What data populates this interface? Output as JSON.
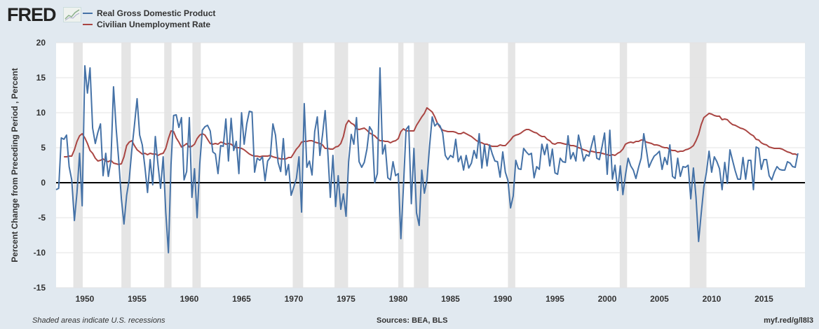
{
  "header": {
    "logo": "FRED",
    "logo_icon": "trend-chart-icon"
  },
  "footer": {
    "note": "Shaded areas indicate U.S. recessions",
    "sources": "Sources: BEA, BLS",
    "link": "myf.red/g/l8l3"
  },
  "chart_data": {
    "type": "line",
    "title": "",
    "xlabel": "",
    "ylabel": "Percent Change from Preceding Period , Percent",
    "xlim": [
      1947.25,
      2018.93
    ],
    "ylim": [
      -15,
      20
    ],
    "yticks": [
      20,
      15,
      10,
      5,
      0,
      -5,
      -10,
      -15
    ],
    "xticks": [
      1950,
      1955,
      1960,
      1965,
      1970,
      1975,
      1980,
      1985,
      1990,
      1995,
      2000,
      2005,
      2010,
      2015
    ],
    "grid": true,
    "legend_position": "top-left",
    "recessions": [
      [
        1948.9,
        1949.8
      ],
      [
        1953.5,
        1954.4
      ],
      [
        1957.6,
        1958.3
      ],
      [
        1960.3,
        1961.1
      ],
      [
        1969.9,
        1970.9
      ],
      [
        1973.9,
        1975.2
      ],
      [
        1980.0,
        1980.5
      ],
      [
        1981.5,
        1982.9
      ],
      [
        1990.5,
        1991.2
      ],
      [
        2001.2,
        2001.9
      ],
      [
        2007.9,
        2009.5
      ]
    ],
    "series": [
      {
        "name": "Real Gross Domestic Product",
        "color": "#4572a7",
        "frequency": "quarterly",
        "start": 1947.25,
        "values": [
          -1.0,
          -0.8,
          6.4,
          6.2,
          6.8,
          2.3,
          0.4,
          -5.4,
          -1.4,
          4.2,
          -3.3,
          16.7,
          12.8,
          16.4,
          7.8,
          5.6,
          7.2,
          8.4,
          1.0,
          4.2,
          0.9,
          3.1,
          13.7,
          7.7,
          3.1,
          -2.3,
          -5.9,
          -1.8,
          0.5,
          4.7,
          8.2,
          12.0,
          6.8,
          5.4,
          2.3,
          -1.4,
          3.3,
          -0.3,
          6.6,
          2.6,
          -0.8,
          3.7,
          -4.2,
          -10.0,
          2.6,
          9.6,
          9.7,
          7.9,
          9.3,
          0.4,
          1.6,
          9.3,
          -2.1,
          2.0,
          -5.0,
          2.7,
          7.5,
          8.0,
          8.2,
          7.4,
          4.4,
          4.1,
          1.3,
          5.3,
          5.2,
          9.1,
          3.1,
          9.2,
          4.6,
          5.9,
          1.3,
          10.0,
          5.5,
          8.4,
          10.2,
          10.1,
          1.5,
          3.5,
          3.2,
          3.7,
          0.3,
          3.1,
          3.6,
          8.4,
          6.8,
          2.9,
          1.6,
          6.3,
          1.1,
          2.6,
          -1.8,
          -0.6,
          0.6,
          3.7,
          -4.2,
          11.3,
          2.2,
          3.1,
          1.1,
          7.3,
          9.4,
          3.9,
          6.8,
          10.3,
          4.5,
          -2.1,
          3.9,
          -3.4,
          1.0,
          -3.8,
          -1.6,
          -4.8,
          3.0,
          6.9,
          5.5,
          9.3,
          3.0,
          2.2,
          2.9,
          4.8,
          8.0,
          7.4,
          0.0,
          1.3,
          16.4,
          4.1,
          5.4,
          0.7,
          0.4,
          3.0,
          1.0,
          1.3,
          -8.0,
          -0.5,
          7.6,
          8.1,
          -3.0,
          4.9,
          -4.3,
          -6.1,
          1.8,
          -1.5,
          0.4,
          5.3,
          9.4,
          8.1,
          8.5,
          8.1,
          7.1,
          3.9,
          3.3,
          3.9,
          3.6,
          6.2,
          3.0,
          3.8,
          1.8,
          3.9,
          2.1,
          2.8,
          4.6,
          3.5,
          7.0,
          2.1,
          5.4,
          2.4,
          5.4,
          4.1,
          3.1,
          3.0,
          0.8,
          4.4,
          1.5,
          0.3,
          -3.6,
          -1.9,
          3.2,
          2.0,
          1.9,
          4.9,
          4.4,
          4.0,
          4.2,
          0.7,
          2.3,
          1.9,
          5.5,
          4.0,
          5.5,
          2.4,
          4.8,
          1.4,
          1.2,
          3.5,
          3.0,
          2.9,
          6.7,
          3.4,
          4.3,
          3.1,
          6.8,
          5.1,
          3.1,
          4.0,
          3.8,
          5.3,
          6.7,
          3.5,
          3.3,
          5.1,
          7.1,
          1.2,
          7.5,
          0.5,
          2.5,
          -1.1,
          2.4,
          -1.7,
          1.1,
          3.5,
          2.4,
          1.8,
          0.6,
          2.2,
          3.5,
          7.0,
          4.7,
          2.2,
          3.1,
          3.8,
          4.1,
          4.5,
          1.9,
          3.6,
          2.6,
          5.4,
          0.9,
          0.6,
          3.5,
          0.9,
          2.3,
          2.2,
          2.5,
          -2.3,
          2.1,
          -2.1,
          -8.4,
          -4.4,
          -0.6,
          1.5,
          4.5,
          1.5,
          3.7,
          3.0,
          2.0,
          -1.0,
          2.9,
          -0.1,
          4.7,
          3.2,
          1.7,
          0.5,
          0.5,
          3.6,
          0.5,
          3.2,
          3.2,
          -1.0,
          5.1,
          4.9,
          1.9,
          3.3,
          3.3,
          1.0,
          0.4,
          1.5,
          2.3,
          1.9,
          1.8,
          1.8,
          3.0,
          2.8,
          2.3,
          2.2,
          4.2
        ]
      },
      {
        "name": "Civilian Unemployment Rate",
        "color": "#aa4643",
        "frequency": "quarterly",
        "start": 1948.0,
        "values": [
          3.7,
          3.7,
          3.8,
          3.8,
          4.7,
          5.9,
          6.7,
          7.0,
          6.4,
          5.6,
          4.6,
          4.2,
          3.5,
          3.1,
          3.2,
          3.4,
          3.1,
          3.0,
          3.2,
          2.8,
          2.7,
          2.6,
          2.7,
          3.7,
          5.3,
          5.8,
          6.0,
          5.3,
          4.7,
          4.4,
          4.1,
          4.2,
          4.0,
          4.2,
          4.1,
          4.1,
          3.9,
          4.1,
          4.2,
          4.9,
          6.3,
          7.4,
          7.3,
          6.4,
          5.8,
          5.1,
          5.3,
          5.6,
          5.1,
          5.2,
          5.5,
          6.3,
          6.8,
          7.0,
          6.8,
          6.2,
          5.6,
          5.5,
          5.6,
          5.5,
          5.8,
          5.7,
          5.5,
          5.6,
          5.5,
          5.2,
          5.0,
          5.0,
          4.9,
          4.7,
          4.4,
          4.1,
          3.9,
          3.8,
          3.8,
          3.7,
          3.8,
          3.8,
          3.8,
          3.9,
          3.7,
          3.6,
          3.5,
          3.4,
          3.4,
          3.4,
          3.6,
          3.6,
          4.2,
          4.8,
          5.2,
          5.8,
          5.9,
          5.9,
          6.0,
          6.0,
          5.8,
          5.7,
          5.6,
          5.4,
          4.9,
          4.9,
          4.8,
          4.8,
          5.1,
          5.2,
          5.6,
          6.6,
          8.3,
          8.9,
          8.5,
          8.3,
          7.7,
          7.6,
          7.7,
          7.8,
          7.5,
          7.1,
          6.9,
          6.7,
          6.3,
          6.0,
          6.0,
          5.9,
          5.9,
          5.7,
          5.9,
          6.0,
          6.3,
          7.3,
          7.7,
          7.4,
          7.4,
          7.4,
          7.4,
          8.2,
          8.8,
          9.4,
          9.9,
          10.7,
          10.4,
          10.1,
          9.4,
          8.5,
          7.9,
          7.5,
          7.4,
          7.3,
          7.3,
          7.3,
          7.2,
          7.0,
          7.0,
          7.2,
          7.0,
          6.8,
          6.6,
          6.3,
          6.0,
          5.8,
          5.7,
          5.5,
          5.5,
          5.3,
          5.2,
          5.2,
          5.2,
          5.4,
          5.3,
          5.3,
          5.7,
          6.1,
          6.6,
          6.8,
          6.9,
          7.1,
          7.4,
          7.6,
          7.6,
          7.4,
          7.2,
          7.1,
          6.8,
          6.6,
          6.6,
          6.2,
          6.0,
          5.6,
          5.5,
          5.7,
          5.7,
          5.6,
          5.5,
          5.5,
          5.3,
          5.3,
          5.2,
          5.0,
          4.9,
          4.7,
          4.6,
          4.4,
          4.5,
          4.4,
          4.3,
          4.3,
          4.2,
          4.1,
          4.0,
          3.9,
          4.0,
          3.9,
          4.2,
          4.4,
          4.8,
          5.5,
          5.7,
          5.8,
          5.7,
          5.9,
          5.9,
          6.1,
          6.1,
          5.8,
          5.7,
          5.6,
          5.4,
          5.4,
          5.3,
          5.1,
          5.0,
          5.0,
          4.7,
          4.6,
          4.6,
          4.4,
          4.5,
          4.5,
          4.7,
          4.8,
          5.0,
          5.3,
          6.0,
          6.9,
          8.3,
          9.3,
          9.6,
          9.9,
          9.8,
          9.6,
          9.5,
          9.5,
          9.0,
          9.1,
          9.0,
          8.6,
          8.3,
          8.2,
          8.0,
          7.8,
          7.7,
          7.5,
          7.2,
          6.9,
          6.7,
          6.2,
          6.1,
          5.7,
          5.5,
          5.4,
          5.1,
          5.0,
          4.9,
          4.9,
          4.9,
          4.8,
          4.6,
          4.4,
          4.3,
          4.1,
          4.1,
          3.9
        ]
      }
    ]
  }
}
